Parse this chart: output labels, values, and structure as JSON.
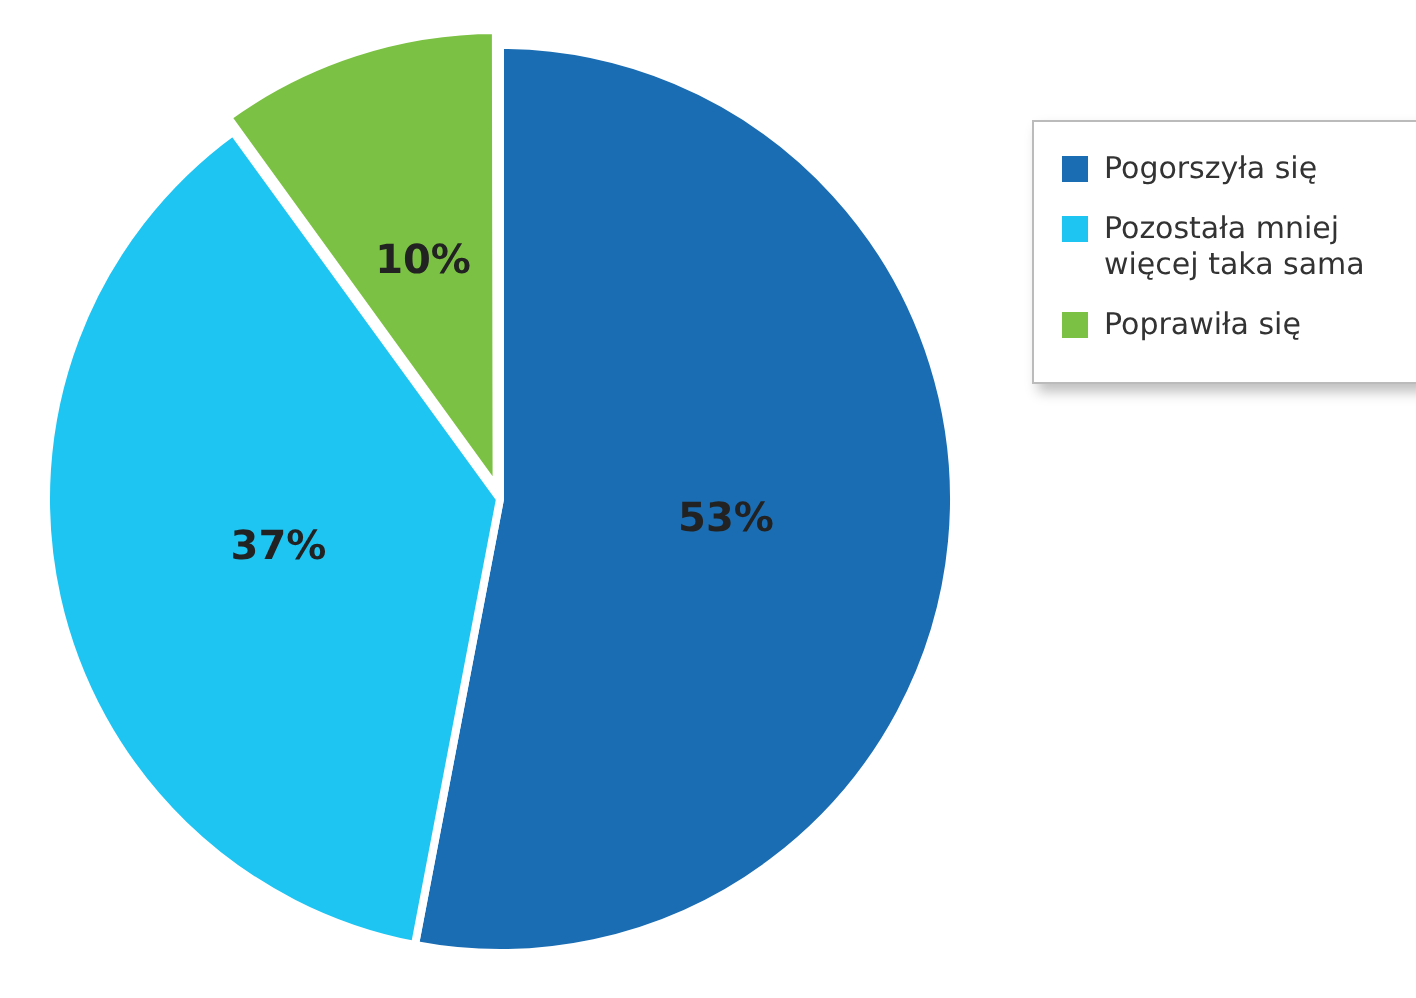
{
  "chart_data": {
    "type": "pie",
    "categories": [
      "Pogorszyła się",
      "Pozostała mniej więcej taka sama",
      "Poprawiła się"
    ],
    "values": [
      53,
      37,
      10
    ],
    "colors": [
      "#1a6db3",
      "#1ec5f2",
      "#7bc143"
    ],
    "value_labels": [
      "53%",
      "37%",
      "10%"
    ],
    "legend": "right"
  }
}
